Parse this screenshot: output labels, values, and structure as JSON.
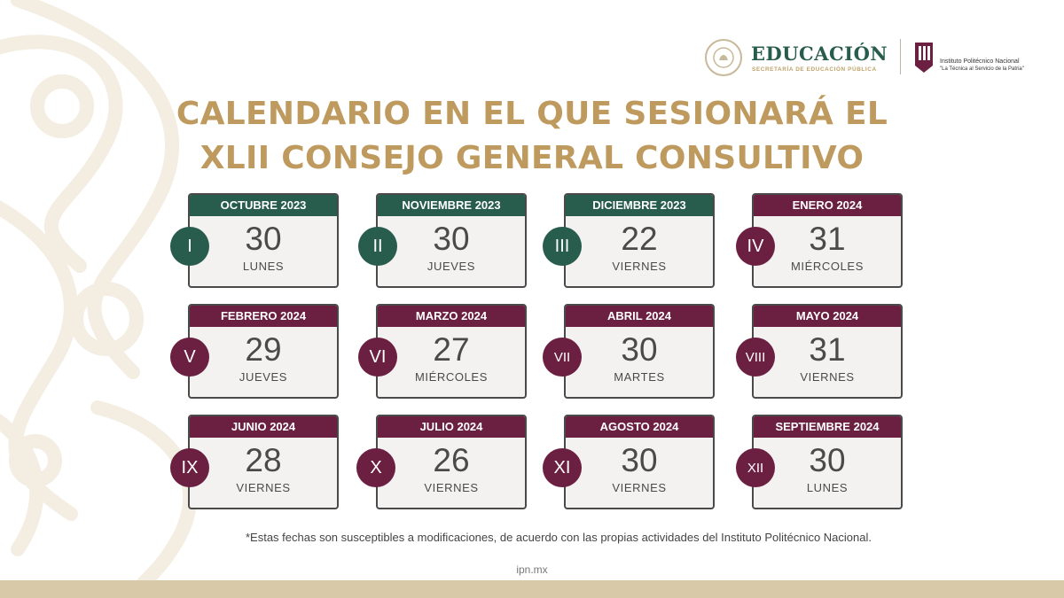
{
  "header": {
    "education_logo": "EDUCACIÓN",
    "education_subtitle": "SECRETARÍA DE EDUCACIÓN PÚBLICA",
    "ipn_name": "Instituto Politécnico Nacional",
    "ipn_motto": "\"La Técnica al Servicio de la Patria\""
  },
  "title": {
    "line1": "CALENDARIO EN EL QUE SESIONARÁ EL",
    "line2": "XLII CONSEJO GENERAL CONSULTIVO"
  },
  "sessions": [
    {
      "numeral": "I",
      "month": "OCTUBRE 2023",
      "day": "30",
      "weekday": "LUNES",
      "color": "#285c4d"
    },
    {
      "numeral": "II",
      "month": "NOVIEMBRE 2023",
      "day": "30",
      "weekday": "JUEVES",
      "color": "#285c4d"
    },
    {
      "numeral": "III",
      "month": "DICIEMBRE 2023",
      "day": "22",
      "weekday": "VIERNES",
      "color": "#285c4d"
    },
    {
      "numeral": "IV",
      "month": "ENERO 2024",
      "day": "31",
      "weekday": "MIÉRCOLES",
      "color": "#6b1f41"
    },
    {
      "numeral": "V",
      "month": "FEBRERO 2024",
      "day": "29",
      "weekday": "JUEVES",
      "color": "#6b1f41"
    },
    {
      "numeral": "VI",
      "month": "MARZO 2024",
      "day": "27",
      "weekday": "MIÉRCOLES",
      "color": "#6b1f41"
    },
    {
      "numeral": "VII",
      "month": "ABRIL 2024",
      "day": "30",
      "weekday": "MARTES",
      "color": "#6b1f41"
    },
    {
      "numeral": "VIII",
      "month": "MAYO 2024",
      "day": "31",
      "weekday": "VIERNES",
      "color": "#6b1f41"
    },
    {
      "numeral": "IX",
      "month": "JUNIO 2024",
      "day": "28",
      "weekday": "VIERNES",
      "color": "#6b1f41"
    },
    {
      "numeral": "X",
      "month": "JULIO 2024",
      "day": "26",
      "weekday": "VIERNES",
      "color": "#6b1f41"
    },
    {
      "numeral": "XI",
      "month": "AGOSTO 2024",
      "day": "30",
      "weekday": "VIERNES",
      "color": "#6b1f41"
    },
    {
      "numeral": "XII",
      "month": "SEPTIEMBRE 2024",
      "day": "30",
      "weekday": "LUNES",
      "color": "#6b1f41"
    }
  ],
  "footnote": "*Estas fechas son susceptibles a modificaciones, de acuerdo con las propias actividades del Instituto Politécnico Nacional.",
  "site": "ipn.mx",
  "colors": {
    "green": "#285c4d",
    "wine": "#6b1f41",
    "gold": "#bf9a5e",
    "sand": "#d8c9a8"
  }
}
